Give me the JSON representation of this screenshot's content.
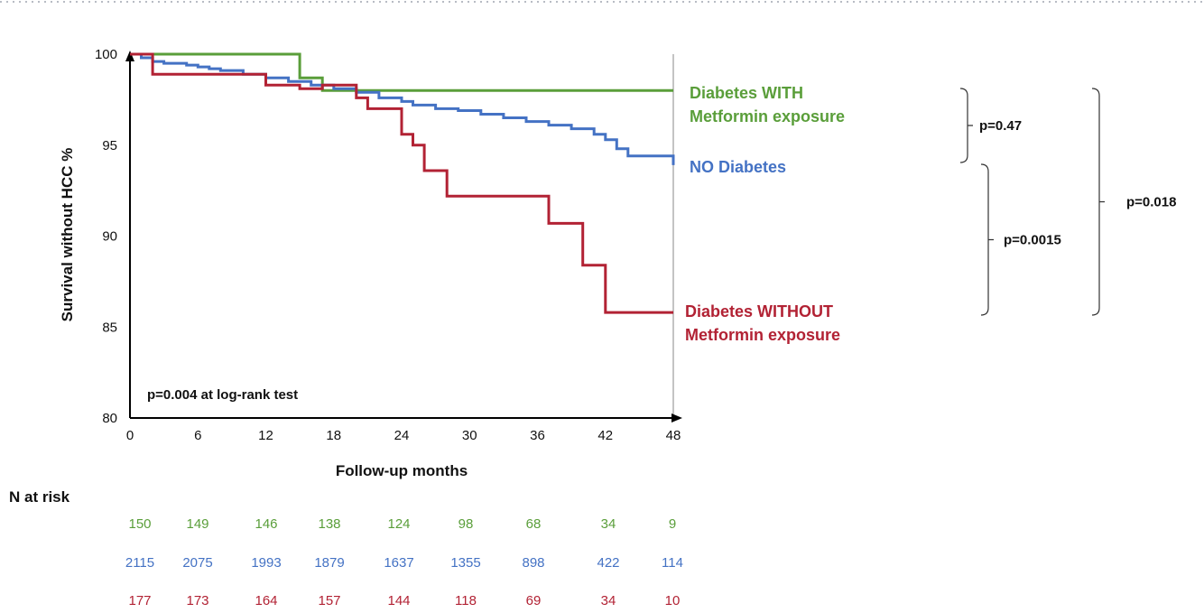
{
  "chart_data": {
    "type": "line",
    "xlabel": "Follow-up months",
    "ylabel": "Survival without HCC %",
    "xlim": [
      0,
      48
    ],
    "ylim": [
      80,
      100
    ],
    "x_ticks": [
      0,
      6,
      12,
      18,
      24,
      30,
      36,
      42,
      48
    ],
    "y_ticks": [
      80,
      85,
      90,
      95,
      100
    ],
    "grid": false,
    "annotation": "p=0.004 at log-rank test",
    "series": [
      {
        "name": "Diabetes WITH Metformin exposure",
        "name_lines": [
          "Diabetes WITH",
          "Metformin exposure"
        ],
        "color": "#5a9e3a",
        "steps": [
          [
            0,
            100
          ],
          [
            15,
            100
          ],
          [
            15,
            98.7
          ],
          [
            17,
            98.7
          ],
          [
            17,
            98.0
          ],
          [
            48,
            98.0
          ]
        ]
      },
      {
        "name": "NO Diabetes",
        "name_lines": [
          "NO Diabetes"
        ],
        "color": "#4472c4",
        "steps": [
          [
            0,
            100
          ],
          [
            1,
            100
          ],
          [
            1,
            99.8
          ],
          [
            2,
            99.8
          ],
          [
            2,
            99.6
          ],
          [
            3,
            99.6
          ],
          [
            3,
            99.5
          ],
          [
            5,
            99.5
          ],
          [
            5,
            99.4
          ],
          [
            6,
            99.4
          ],
          [
            6,
            99.3
          ],
          [
            7,
            99.3
          ],
          [
            7,
            99.2
          ],
          [
            8,
            99.2
          ],
          [
            8,
            99.1
          ],
          [
            10,
            99.1
          ],
          [
            10,
            98.9
          ],
          [
            12,
            98.9
          ],
          [
            12,
            98.7
          ],
          [
            14,
            98.7
          ],
          [
            14,
            98.5
          ],
          [
            16,
            98.5
          ],
          [
            16,
            98.3
          ],
          [
            18,
            98.3
          ],
          [
            18,
            98.1
          ],
          [
            20,
            98.1
          ],
          [
            20,
            97.9
          ],
          [
            22,
            97.9
          ],
          [
            22,
            97.6
          ],
          [
            24,
            97.6
          ],
          [
            24,
            97.4
          ],
          [
            25,
            97.4
          ],
          [
            25,
            97.2
          ],
          [
            27,
            97.2
          ],
          [
            27,
            97.0
          ],
          [
            29,
            97.0
          ],
          [
            29,
            96.9
          ],
          [
            31,
            96.9
          ],
          [
            31,
            96.7
          ],
          [
            33,
            96.7
          ],
          [
            33,
            96.5
          ],
          [
            35,
            96.5
          ],
          [
            35,
            96.3
          ],
          [
            37,
            96.3
          ],
          [
            37,
            96.1
          ],
          [
            39,
            96.1
          ],
          [
            39,
            95.9
          ],
          [
            41,
            95.9
          ],
          [
            41,
            95.6
          ],
          [
            42,
            95.6
          ],
          [
            42,
            95.3
          ],
          [
            43,
            95.3
          ],
          [
            43,
            94.8
          ],
          [
            44,
            94.8
          ],
          [
            44,
            94.4
          ],
          [
            48,
            94.4
          ],
          [
            48,
            93.9
          ]
        ]
      },
      {
        "name": "Diabetes WITHOUT Metformin exposure",
        "name_lines": [
          "Diabetes WITHOUT",
          "Metformin exposure"
        ],
        "color": "#b22234",
        "steps": [
          [
            0,
            100
          ],
          [
            2,
            100
          ],
          [
            2,
            98.9
          ],
          [
            12,
            98.9
          ],
          [
            12,
            98.3
          ],
          [
            15,
            98.3
          ],
          [
            15,
            98.1
          ],
          [
            17,
            98.1
          ],
          [
            17,
            98.3
          ],
          [
            20,
            98.3
          ],
          [
            20,
            97.6
          ],
          [
            21,
            97.6
          ],
          [
            21,
            97.0
          ],
          [
            24,
            97.0
          ],
          [
            24,
            95.6
          ],
          [
            25,
            95.6
          ],
          [
            25,
            95.0
          ],
          [
            26,
            95.0
          ],
          [
            26,
            93.6
          ],
          [
            28,
            93.6
          ],
          [
            28,
            92.2
          ],
          [
            37,
            92.2
          ],
          [
            37,
            90.7
          ],
          [
            40,
            90.7
          ],
          [
            40,
            88.4
          ],
          [
            42,
            88.4
          ],
          [
            42,
            85.8
          ],
          [
            48,
            85.8
          ]
        ]
      }
    ],
    "comparisons": [
      {
        "label": "p=0.47"
      },
      {
        "label": "p=0.0015"
      },
      {
        "label": "p=0.018"
      }
    ],
    "risk_table": {
      "title": "N at risk",
      "rows": [
        {
          "color": "#5a9e3a",
          "values": [
            "150",
            "149",
            "146",
            "138",
            "124",
            "98",
            "68",
            "34",
            "9"
          ]
        },
        {
          "color": "#4472c4",
          "values": [
            "2115",
            "2075",
            "1993",
            "1879",
            "1637",
            "1355",
            "898",
            "422",
            "114"
          ]
        },
        {
          "color": "#b22234",
          "values": [
            "177",
            "173",
            "164",
            "157",
            "144",
            "118",
            "69",
            "34",
            "10"
          ]
        }
      ]
    }
  }
}
